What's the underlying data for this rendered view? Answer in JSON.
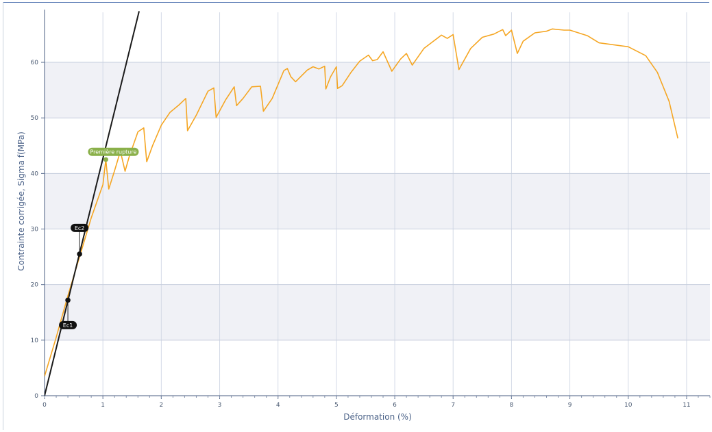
{
  "chart_data": {
    "type": "line",
    "xlabel": "Déformation (%)",
    "ylabel": "Contrainte corrigée, Sigma f(MPa)",
    "xlim": [
      0,
      11.4
    ],
    "ylim": [
      0,
      69
    ],
    "x_ticks": [
      "0",
      "1",
      "2",
      "3",
      "4",
      "5",
      "6",
      "7",
      "8",
      "9",
      "10",
      "11"
    ],
    "y_ticks": [
      "0",
      "10",
      "20",
      "30",
      "40",
      "50",
      "60"
    ],
    "grid": true,
    "bands": [
      [
        10,
        20
      ],
      [
        30,
        40
      ],
      [
        50,
        60
      ]
    ],
    "series": [
      {
        "type": "line",
        "color": "#f5a623",
        "x": [
          0,
          0.2,
          0.4,
          0.6,
          0.8,
          1.0,
          1.05,
          1.1,
          1.2,
          1.3,
          1.38,
          1.45,
          1.6,
          1.7,
          1.75,
          1.85,
          2.0,
          2.15,
          2.3,
          2.42,
          2.45,
          2.6,
          2.8,
          2.9,
          2.94,
          3.1,
          3.25,
          3.29,
          3.4,
          3.55,
          3.7,
          3.75,
          3.9,
          4.0,
          4.1,
          4.16,
          4.22,
          4.3,
          4.5,
          4.6,
          4.7,
          4.8,
          4.82,
          4.9,
          5.0,
          5.02,
          5.1,
          5.25,
          5.4,
          5.55,
          5.62,
          5.7,
          5.8,
          5.95,
          6.1,
          6.2,
          6.3,
          6.5,
          6.8,
          6.9,
          7.0,
          7.1,
          7.3,
          7.5,
          7.7,
          7.85,
          7.9,
          8.0,
          8.1,
          8.2,
          8.4,
          8.6,
          8.7,
          8.9,
          9.0,
          9.3,
          9.5,
          10.0,
          10.3,
          10.5,
          10.7,
          10.85
        ],
        "y": [
          3.5,
          10.5,
          18,
          25,
          32,
          38,
          42.5,
          37.2,
          40.5,
          44,
          40.4,
          43,
          47.5,
          48.2,
          42.1,
          45,
          48.7,
          51,
          52.3,
          53.5,
          47.7,
          50.5,
          54.8,
          55.4,
          50.1,
          53.2,
          55.6,
          52.2,
          53.5,
          55.6,
          55.7,
          51.2,
          53.5,
          56,
          58.5,
          58.9,
          57.4,
          56.5,
          58.6,
          59.2,
          58.8,
          59.3,
          55.2,
          57.4,
          59.2,
          55.3,
          55.8,
          58.2,
          60.2,
          61.3,
          60.3,
          60.5,
          61.9,
          58.4,
          60.6,
          61.6,
          59.5,
          62.5,
          64.9,
          64.3,
          65,
          58.7,
          62.5,
          64.5,
          65.1,
          65.9,
          64.8,
          65.8,
          61.6,
          63.8,
          65.3,
          65.6,
          66,
          65.8,
          65.8,
          64.8,
          63.5,
          62.8,
          61.2,
          58.2,
          53,
          46.3
        ]
      },
      {
        "type": "line",
        "color": "#1a1a1a",
        "x": [
          0,
          1.62
        ],
        "y": [
          0,
          69.2
        ]
      }
    ],
    "markers": [
      {
        "x": 0.4,
        "y": 17.2,
        "label": "Ec1",
        "label_y": 12.7
      },
      {
        "x": 0.6,
        "y": 25.5,
        "label": "Ec2",
        "label_y": 30.2
      },
      {
        "x": 1.05,
        "y": 42.5,
        "label": "Première rupture",
        "label_y": 43.9
      }
    ]
  }
}
